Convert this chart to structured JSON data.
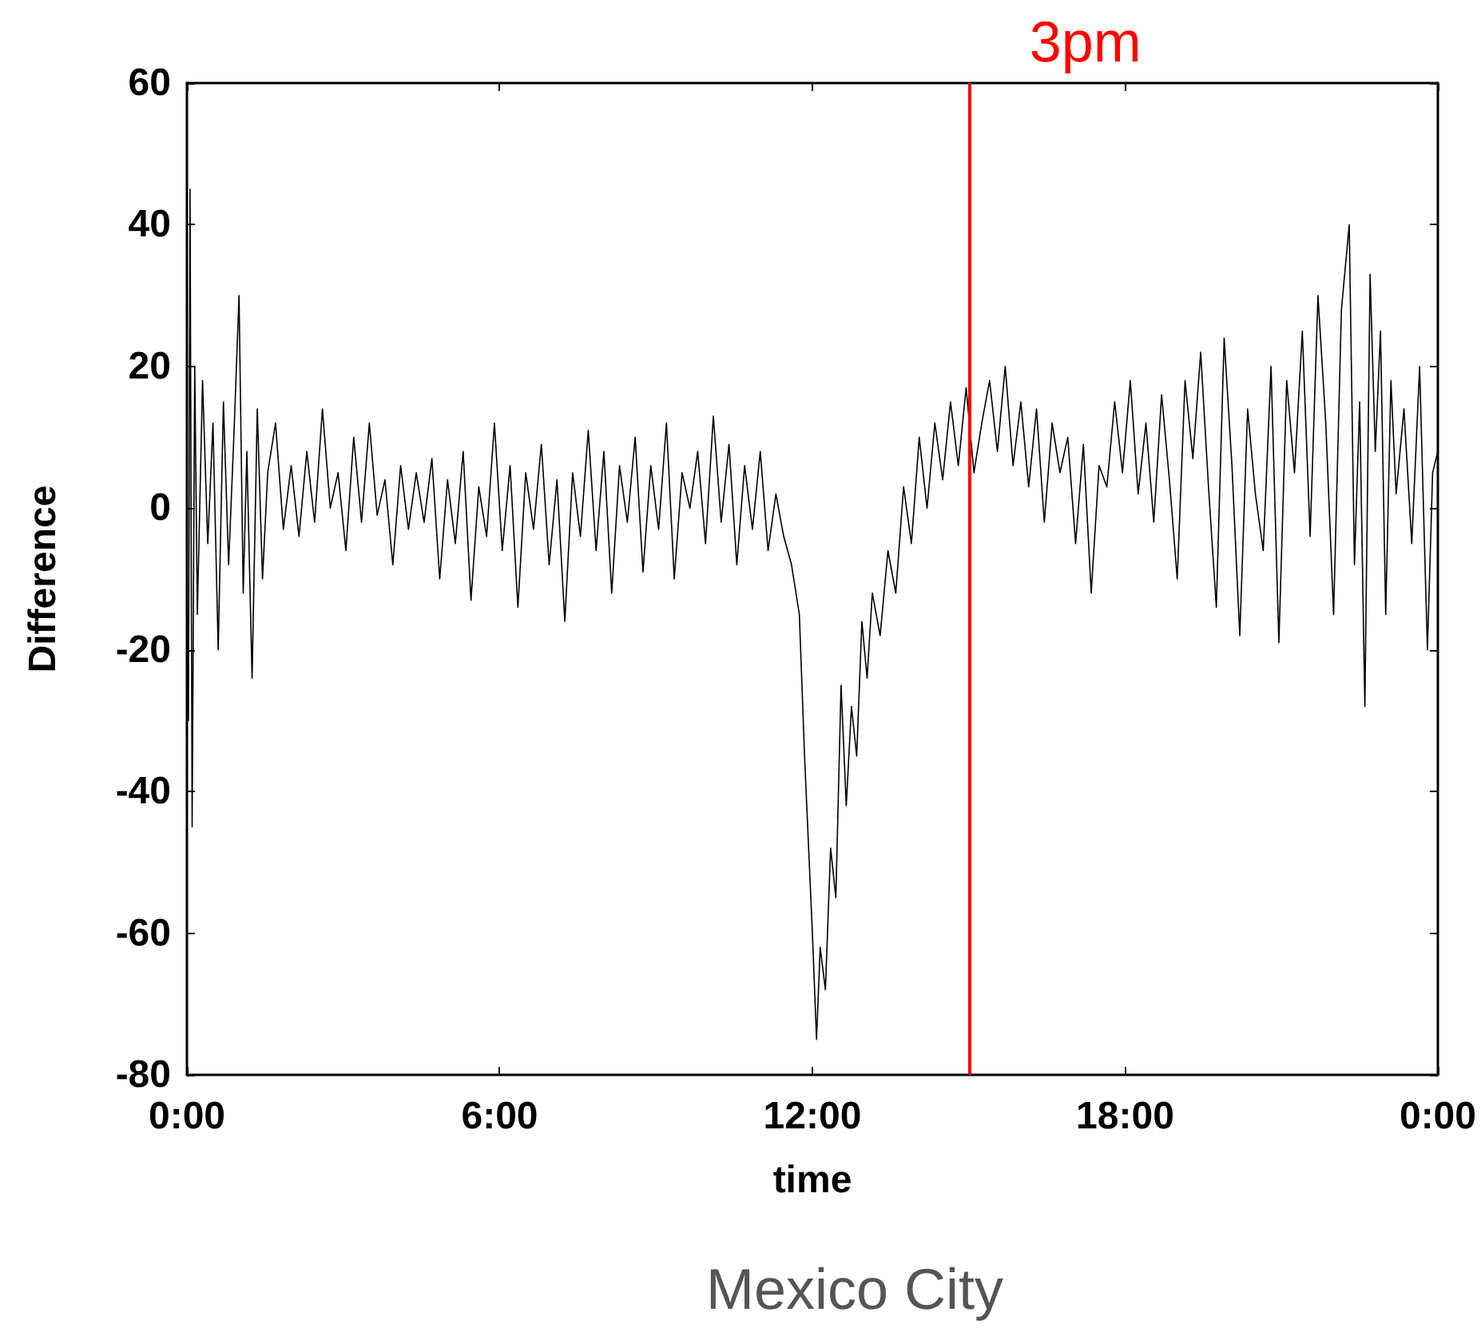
{
  "chart_data": {
    "type": "line",
    "xlabel": "time",
    "ylabel": "Difference",
    "annotations": [
      "Mexico City"
    ],
    "x": [
      0,
      0.03,
      0.06,
      0.1,
      0.15,
      0.2,
      0.3,
      0.4,
      0.5,
      0.6,
      0.7,
      0.8,
      0.9,
      1.0,
      1.08,
      1.15,
      1.25,
      1.35,
      1.45,
      1.55,
      1.7,
      1.85,
      2.0,
      2.15,
      2.3,
      2.45,
      2.6,
      2.75,
      2.9,
      3.05,
      3.2,
      3.35,
      3.5,
      3.65,
      3.8,
      3.95,
      4.1,
      4.25,
      4.4,
      4.55,
      4.7,
      4.85,
      5.0,
      5.15,
      5.3,
      5.45,
      5.6,
      5.75,
      5.9,
      6.05,
      6.2,
      6.35,
      6.5,
      6.65,
      6.8,
      6.95,
      7.1,
      7.25,
      7.4,
      7.55,
      7.7,
      7.85,
      8.0,
      8.15,
      8.3,
      8.45,
      8.6,
      8.75,
      8.9,
      9.05,
      9.2,
      9.35,
      9.5,
      9.65,
      9.8,
      9.95,
      10.1,
      10.25,
      10.4,
      10.55,
      10.7,
      10.85,
      11.0,
      11.15,
      11.3,
      11.45,
      11.6,
      11.75,
      11.85,
      12.0,
      12.08,
      12.15,
      12.25,
      12.35,
      12.45,
      12.55,
      12.65,
      12.75,
      12.85,
      12.95,
      13.05,
      13.15,
      13.3,
      13.45,
      13.6,
      13.75,
      13.9,
      14.05,
      14.2,
      14.35,
      14.5,
      14.65,
      14.8,
      14.95,
      15.1,
      15.25,
      15.4,
      15.55,
      15.7,
      15.85,
      16.0,
      16.15,
      16.3,
      16.45,
      16.6,
      16.75,
      16.9,
      17.05,
      17.2,
      17.35,
      17.5,
      17.65,
      17.8,
      17.95,
      18.1,
      18.25,
      18.4,
      18.55,
      18.7,
      18.85,
      19.0,
      19.15,
      19.3,
      19.45,
      19.6,
      19.75,
      19.9,
      20.05,
      20.2,
      20.35,
      20.5,
      20.65,
      20.8,
      20.95,
      21.1,
      21.25,
      21.4,
      21.55,
      21.7,
      21.85,
      22.0,
      22.15,
      22.3,
      22.4,
      22.5,
      22.6,
      22.7,
      22.8,
      22.9,
      23.0,
      23.1,
      23.2,
      23.35,
      23.5,
      23.65,
      23.8,
      23.9,
      24.0
    ],
    "series": [
      {
        "color": "#000000",
        "values": [
          -10,
          -30,
          45,
          -45,
          20,
          -15,
          18,
          -5,
          12,
          -20,
          15,
          -8,
          10,
          30,
          -12,
          8,
          -24,
          14,
          -10,
          5,
          12,
          -3,
          6,
          -4,
          8,
          -2,
          14,
          0,
          5,
          -6,
          10,
          -2,
          12,
          -1,
          4,
          -8,
          6,
          -3,
          5,
          -2,
          7,
          -10,
          4,
          -5,
          8,
          -13,
          3,
          -4,
          12,
          -6,
          6,
          -14,
          5,
          -3,
          9,
          -8,
          4,
          -16,
          5,
          -4,
          11,
          -6,
          8,
          -12,
          6,
          -2,
          10,
          -9,
          6,
          -3,
          12,
          -10,
          5,
          0,
          8,
          -5,
          13,
          -2,
          9,
          -8,
          6,
          -3,
          8,
          -6,
          2,
          -4,
          -8,
          -15,
          -35,
          -60,
          -75,
          -62,
          -68,
          -48,
          -55,
          -25,
          -42,
          -28,
          -35,
          -16,
          -24,
          -12,
          -18,
          -6,
          -12,
          3,
          -5,
          10,
          0,
          12,
          4,
          15,
          6,
          17,
          5,
          12,
          18,
          8,
          20,
          6,
          15,
          3,
          14,
          -2,
          12,
          5,
          10,
          -5,
          9,
          -12,
          6,
          3,
          15,
          5,
          18,
          2,
          12,
          -2,
          16,
          4,
          -10,
          18,
          7,
          22,
          3,
          -14,
          24,
          6,
          -18,
          14,
          2,
          -6,
          20,
          -19,
          18,
          5,
          25,
          -4,
          30,
          12,
          -15,
          28,
          40,
          -8,
          15,
          -28,
          33,
          8,
          25,
          -15,
          18,
          2,
          14,
          -5,
          20,
          -20,
          5,
          8
        ]
      }
    ],
    "xlim": [
      0,
      24
    ],
    "xticks": [
      {
        "value": 0,
        "label": "0:00"
      },
      {
        "value": 6,
        "label": "6:00"
      },
      {
        "value": 12,
        "label": "12:00"
      },
      {
        "value": 18,
        "label": "18:00"
      },
      {
        "value": 24,
        "label": "0:00"
      }
    ],
    "ylim": [
      -80,
      60
    ],
    "yticks": [
      -80,
      -60,
      -40,
      -20,
      0,
      20,
      40,
      60
    ],
    "ref_lines": [
      {
        "axis": "x",
        "value": 15,
        "label": "3pm",
        "color": "#ff0000"
      }
    ],
    "marker": "none",
    "line_style": "solid",
    "grid": false
  }
}
